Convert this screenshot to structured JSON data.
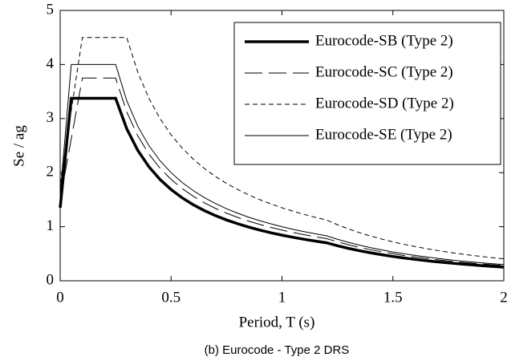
{
  "chart_data": {
    "type": "line",
    "caption": "(b) Eurocode - Type 2 DRS",
    "x_label": "Period, T (s)",
    "y_label": "Se / ag",
    "x": [
      0,
      0.05,
      0.1,
      0.15,
      0.2,
      0.25,
      0.3,
      0.35,
      0.4,
      0.45,
      0.5,
      0.55,
      0.6,
      0.65,
      0.7,
      0.75,
      0.8,
      0.85,
      0.9,
      0.95,
      1,
      1.05,
      1.1,
      1.15,
      1.2,
      1.25,
      1.3,
      1.35,
      1.4,
      1.45,
      1.5,
      1.55,
      1.6,
      1.65,
      1.7,
      1.75,
      1.8,
      1.85,
      1.9,
      1.95,
      2
    ],
    "series": [
      {
        "name": "Eurocode-SB (Type 2)",
        "color": "#000000",
        "width": 3.5,
        "dash": "none",
        "values": [
          1.35,
          3.375,
          3.375,
          3.375,
          3.375,
          3.375,
          2.813,
          2.411,
          2.109,
          1.875,
          1.688,
          1.534,
          1.406,
          1.298,
          1.205,
          1.125,
          1.055,
          0.993,
          0.938,
          0.888,
          0.844,
          0.804,
          0.767,
          0.734,
          0.703,
          0.648,
          0.599,
          0.556,
          0.517,
          0.482,
          0.45,
          0.421,
          0.396,
          0.372,
          0.35,
          0.331,
          0.313,
          0.296,
          0.28,
          0.266,
          0.253
        ]
      },
      {
        "name": "Eurocode-SC (Type 2)",
        "color": "#000000",
        "width": 1,
        "dash": "22 8",
        "values": [
          1.5,
          2.625,
          3.75,
          3.75,
          3.75,
          3.75,
          3.125,
          2.679,
          2.344,
          2.083,
          1.875,
          1.705,
          1.563,
          1.442,
          1.339,
          1.25,
          1.172,
          1.103,
          1.042,
          0.987,
          0.938,
          0.893,
          0.852,
          0.815,
          0.781,
          0.72,
          0.666,
          0.617,
          0.574,
          0.535,
          0.5,
          0.468,
          0.439,
          0.413,
          0.389,
          0.367,
          0.347,
          0.329,
          0.312,
          0.296,
          0.281
        ]
      },
      {
        "name": "Eurocode-SD (Type 2)",
        "color": "#000000",
        "width": 1,
        "dash": "6 4",
        "values": [
          1.8,
          3.15,
          4.5,
          4.5,
          4.5,
          4.5,
          4.5,
          3.857,
          3.375,
          3.0,
          2.7,
          2.455,
          2.25,
          2.077,
          1.929,
          1.8,
          1.688,
          1.588,
          1.5,
          1.421,
          1.35,
          1.286,
          1.227,
          1.174,
          1.125,
          1.037,
          0.959,
          0.889,
          0.827,
          0.771,
          0.72,
          0.674,
          0.633,
          0.595,
          0.561,
          0.529,
          0.5,
          0.473,
          0.449,
          0.426,
          0.405
        ]
      },
      {
        "name": "Eurocode-SE (Type 2)",
        "color": "#000000",
        "width": 1,
        "dash": "none",
        "values": [
          1.6,
          4,
          4,
          4,
          4,
          4,
          3.333,
          2.857,
          2.5,
          2.222,
          2,
          1.818,
          1.667,
          1.538,
          1.429,
          1.333,
          1.25,
          1.176,
          1.111,
          1.053,
          1,
          0.952,
          0.909,
          0.87,
          0.833,
          0.768,
          0.71,
          0.658,
          0.612,
          0.571,
          0.533,
          0.5,
          0.469,
          0.441,
          0.415,
          0.392,
          0.37,
          0.351,
          0.332,
          0.316,
          0.3
        ]
      }
    ],
    "xlim": [
      0,
      2
    ],
    "ylim": [
      0,
      5
    ],
    "xticks": [
      0,
      0.5,
      1,
      1.5,
      2
    ],
    "yticks": [
      0,
      1,
      2,
      3,
      4,
      5
    ],
    "legend": "upper right"
  }
}
